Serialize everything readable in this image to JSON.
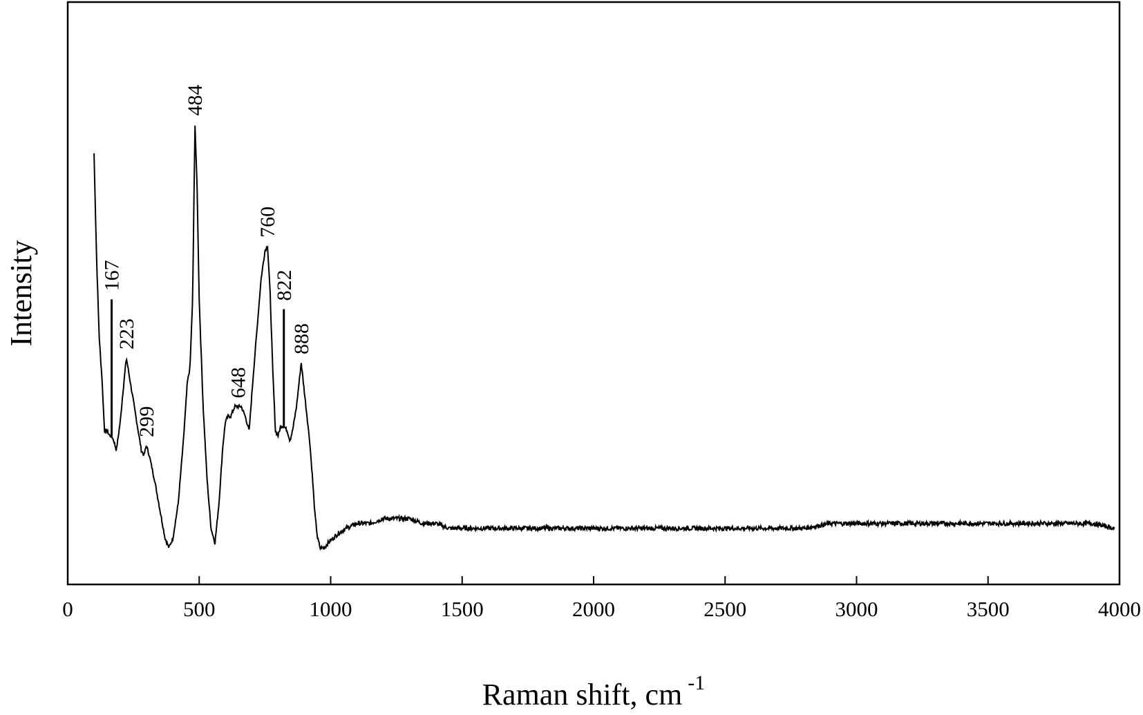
{
  "chart_data": {
    "type": "line",
    "xlabel": "Raman shift, cm",
    "xlabel_superscript": "-1",
    "ylabel": "Intensity",
    "xlim": [
      0,
      4000
    ],
    "ylim": [
      0,
      100
    ],
    "x_ticks": [
      0,
      500,
      1000,
      1500,
      2000,
      2500,
      3000,
      3500,
      4000
    ],
    "y_ticks_shown": false,
    "grid": false,
    "legend": "none",
    "line_color": "#000000",
    "series": [
      {
        "x": [
          100,
          110,
          120,
          130,
          140,
          150,
          160,
          167,
          175,
          185,
          200,
          210,
          223,
          235,
          250,
          265,
          280,
          290,
          299,
          310,
          330,
          350,
          370,
          385,
          400,
          420,
          440,
          455,
          465,
          475,
          484,
          492,
          500,
          515,
          530,
          545,
          560,
          575,
          590,
          600,
          610,
          620,
          635,
          648,
          660,
          675,
          690,
          705,
          720,
          735,
          750,
          760,
          770,
          780,
          790,
          800,
          810,
          822,
          835,
          845,
          855,
          870,
          888,
          900,
          910,
          920,
          930,
          940,
          950,
          960,
          975,
          990,
          1010,
          1030,
          1060,
          1100,
          1150,
          1200,
          1250,
          1300,
          1350,
          1400,
          1450,
          1500,
          1600,
          1700,
          1800,
          1900,
          2000,
          2100,
          2200,
          2300,
          2400,
          2500,
          2600,
          2700,
          2800,
          2900,
          3000,
          3100,
          3200,
          3300,
          3400,
          3500,
          3600,
          3700,
          3800,
          3900,
          3980
        ],
        "y": [
          82,
          60,
          44,
          36,
          25,
          25,
          24,
          24,
          23,
          21,
          27,
          33,
          40,
          36,
          31,
          26,
          21,
          20,
          22,
          20,
          15,
          9,
          3,
          1,
          3,
          10,
          23,
          35,
          38,
          52,
          88,
          75,
          52,
          30,
          15,
          5,
          2,
          10,
          22,
          27,
          28,
          28,
          30,
          30,
          30,
          28,
          25,
          36,
          46,
          56,
          62,
          63,
          53,
          37,
          25,
          24,
          26,
          26,
          25,
          23,
          25,
          30,
          39,
          33,
          28,
          23,
          16,
          8,
          3,
          1,
          1,
          2,
          3,
          4,
          5,
          6,
          6,
          7,
          7,
          7,
          6,
          6,
          5,
          5,
          5,
          5,
          5,
          5,
          5,
          5,
          5,
          5,
          5,
          5,
          5,
          5,
          5,
          6,
          6,
          6,
          6,
          6,
          6,
          6,
          6,
          6,
          6,
          6,
          5
        ]
      }
    ],
    "peak_labels": [
      {
        "text": "167",
        "x": 167,
        "tick_from": 24,
        "tick_to": 52
      },
      {
        "text": "223",
        "x": 223,
        "y": 40
      },
      {
        "text": "299",
        "x": 299,
        "y": 22
      },
      {
        "text": "484",
        "x": 484,
        "y": 88
      },
      {
        "text": "648",
        "x": 648,
        "y": 30
      },
      {
        "text": "760",
        "x": 760,
        "y": 63
      },
      {
        "text": "822",
        "x": 822,
        "tick_from": 26,
        "tick_to": 50
      },
      {
        "text": "888",
        "x": 888,
        "y": 39
      }
    ]
  }
}
